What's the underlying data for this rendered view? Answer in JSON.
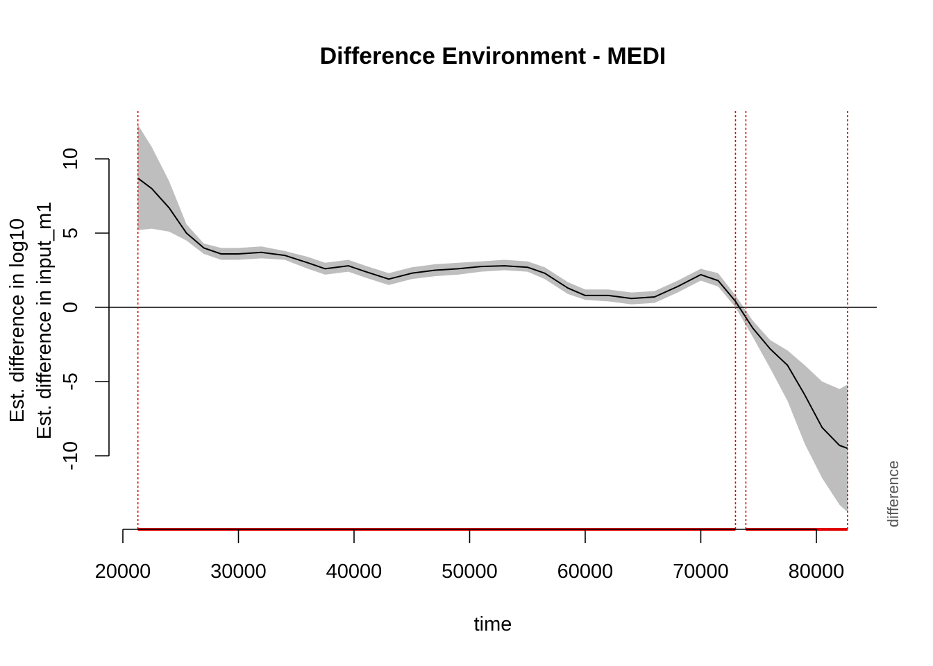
{
  "chart_data": {
    "type": "line",
    "title": "Difference Environment - MEDI",
    "xlabel": "time",
    "ylabel_line1": "Est. difference in log10",
    "ylabel_line2": "Est. difference in input_m1",
    "side_label": "difference",
    "xlim": [
      20000,
      85000
    ],
    "ylim": [
      -15,
      12
    ],
    "x_ticks": [
      20000,
      30000,
      40000,
      50000,
      60000,
      70000,
      80000
    ],
    "x_tick_labels": [
      "20000",
      "30000",
      "40000",
      "50000",
      "60000",
      "70000",
      "80000"
    ],
    "y_ticks": [
      10,
      5,
      0,
      -5,
      -10
    ],
    "y_tick_labels": [
      "10",
      "5",
      "0",
      "-5",
      "-10"
    ],
    "reference_line_y": 0,
    "vertical_lines_x": [
      21300,
      73000,
      73900,
      82700
    ],
    "significant_intervals": [
      [
        21300,
        73000
      ],
      [
        73900,
        82700
      ]
    ],
    "series": [
      {
        "x": [
          21300,
          22500,
          24000,
          25500,
          27000,
          28500,
          30000,
          32000,
          34000,
          36000,
          37500,
          39500,
          41000,
          43000,
          45000,
          47000,
          49000,
          51000,
          53000,
          55000,
          56500,
          58500,
          60000,
          62000,
          64000,
          66000,
          68000,
          70000,
          71500,
          73000,
          74500,
          76000,
          77500,
          79000,
          80500,
          82000,
          82700
        ],
        "y": [
          8.7,
          8.0,
          6.7,
          5.0,
          4.0,
          3.6,
          3.6,
          3.7,
          3.5,
          3.0,
          2.6,
          2.8,
          2.4,
          1.9,
          2.3,
          2.5,
          2.6,
          2.75,
          2.8,
          2.7,
          2.3,
          1.3,
          0.8,
          0.8,
          0.6,
          0.7,
          1.4,
          2.2,
          1.8,
          0.4,
          -1.4,
          -2.8,
          -3.9,
          -5.9,
          -8.1,
          -9.3,
          -9.5
        ],
        "lower": [
          5.2,
          5.3,
          5.1,
          4.5,
          3.6,
          3.2,
          3.2,
          3.3,
          3.2,
          2.6,
          2.2,
          2.4,
          2.0,
          1.5,
          1.9,
          2.1,
          2.2,
          2.4,
          2.5,
          2.4,
          1.9,
          0.9,
          0.5,
          0.4,
          0.2,
          0.3,
          1.0,
          1.8,
          1.4,
          0.0,
          -2.0,
          -4.1,
          -6.3,
          -9.2,
          -11.5,
          -13.3,
          -13.8
        ],
        "upper": [
          12.3,
          10.8,
          8.5,
          5.6,
          4.3,
          4.0,
          4.0,
          4.1,
          3.8,
          3.4,
          3.0,
          3.2,
          2.8,
          2.3,
          2.7,
          2.9,
          3.0,
          3.1,
          3.2,
          3.1,
          2.7,
          1.7,
          1.2,
          1.2,
          1.0,
          1.1,
          1.8,
          2.6,
          2.3,
          0.8,
          -0.9,
          -2.2,
          -2.9,
          -3.9,
          -5.0,
          -5.5,
          -5.2
        ]
      }
    ],
    "colors": {
      "line": "#000000",
      "band": "#bebebe",
      "vline": "#e00000",
      "interval": "#e00000",
      "zero_line": "#000000"
    }
  }
}
